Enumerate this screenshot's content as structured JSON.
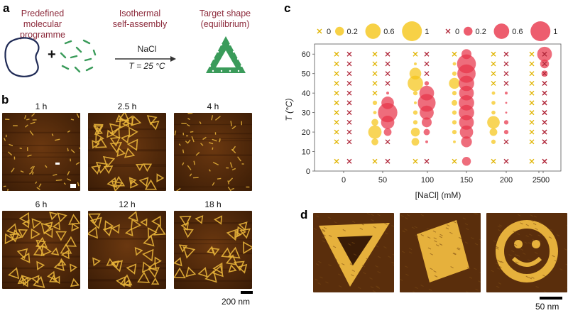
{
  "panels": {
    "a": "a",
    "b": "b",
    "c": "c",
    "d": "d"
  },
  "panel_a": {
    "left_label": "Predefined\nmolecular programme",
    "middle_label": "Isothermal\nself-assembly",
    "right_label": "Target shape\n(equilibrium)",
    "arrow_top": "NaCl",
    "arrow_bottom": "T = 25 °C",
    "plus": "+"
  },
  "panel_b": {
    "times": [
      "1 h",
      "2.5 h",
      "4 h",
      "6 h",
      "12 h",
      "18 h"
    ],
    "scale_bar": "200 nm"
  },
  "panel_d": {
    "scale_bar": "50 nm",
    "shapes": [
      "triangle",
      "rectangle",
      "smiley"
    ]
  },
  "colors": {
    "header_text": "#8c2a3b",
    "yellow": "#f5c518",
    "red": "#e8344a",
    "green": "#3a9b5a",
    "navy": "#1f2a55",
    "afm_dark": "#3a1c06",
    "afm_light": "#e8b43a"
  },
  "chart_data": {
    "type": "scatter",
    "xlabel": "[NaCl] (mM)",
    "ylabel": "T (°C)",
    "x_ticks": [
      0,
      50,
      100,
      150,
      200,
      250,
      500
    ],
    "x_tick_labels": [
      "0",
      "50",
      "100",
      "150",
      "200",
      "250",
      "500"
    ],
    "y_ticks": [
      0,
      10,
      20,
      30,
      40,
      50,
      60
    ],
    "ylim": [
      0,
      63
    ],
    "legend_placement": "top",
    "legend": {
      "yellow": [
        {
          "label": "0",
          "marker": "x"
        },
        {
          "label": "0.2",
          "size": 0.2
        },
        {
          "label": "0.6",
          "size": 0.6
        },
        {
          "label": "1",
          "size": 1
        }
      ],
      "red": [
        {
          "label": "0",
          "marker": "x"
        },
        {
          "label": "0.2",
          "size": 0.2
        },
        {
          "label": "0.6",
          "size": 0.6
        },
        {
          "label": "1",
          "size": 1
        }
      ]
    },
    "temperatures": [
      5,
      15,
      20,
      25,
      30,
      35,
      40,
      45,
      50,
      55,
      60
    ],
    "series": [
      {
        "color": "yellow",
        "columns": [
          {
            "nacl": 0,
            "values": [
              0,
              0,
              0,
              0,
              0,
              0,
              0,
              0,
              0,
              0,
              0
            ]
          },
          {
            "nacl": 50,
            "values": [
              0,
              0.12,
              0.45,
              0.12,
              0.03,
              0.05,
              0,
              0,
              0,
              0,
              0
            ]
          },
          {
            "nacl": 100,
            "values": [
              0,
              0.15,
              0.2,
              0.05,
              0.05,
              0.02,
              0.05,
              0.6,
              0.35,
              0.02,
              0
            ]
          },
          {
            "nacl": 150,
            "values": [
              0,
              0.02,
              0.05,
              0.05,
              0.05,
              0.08,
              0.05,
              0.3,
              0.05,
              0.03,
              0
            ]
          },
          {
            "nacl": 200,
            "values": [
              0,
              0.05,
              0.15,
              0.4,
              0.04,
              0.04,
              0.03,
              0,
              0,
              0,
              0
            ]
          },
          {
            "nacl": 500,
            "values": [
              0,
              0,
              0,
              0,
              0,
              0,
              0,
              0,
              0,
              0,
              0
            ]
          }
        ]
      },
      {
        "color": "red",
        "columns": [
          {
            "nacl": 0,
            "values": [
              0,
              0,
              0,
              0,
              0,
              0,
              0,
              0,
              0,
              0,
              0
            ]
          },
          {
            "nacl": 50,
            "values": [
              0,
              0,
              0.15,
              0.45,
              0.95,
              0.4,
              0.02,
              0,
              0,
              0,
              0
            ]
          },
          {
            "nacl": 100,
            "values": [
              0,
              0.02,
              0.1,
              0.25,
              0.5,
              0.8,
              0.55,
              0.05,
              0,
              0,
              0
            ]
          },
          {
            "nacl": 150,
            "values": [
              0.2,
              0.3,
              0.45,
              0.55,
              0.6,
              0.6,
              0.55,
              0.6,
              0.85,
              0.9,
              0.25
            ]
          },
          {
            "nacl": 200,
            "values": [
              0,
              0,
              0.05,
              0.05,
              0.01,
              0.01,
              0.02,
              0,
              0,
              0,
              0
            ]
          },
          {
            "nacl": 250,
            "values": [
              0,
              0,
              0,
              0,
              0,
              0,
              0,
              0,
              0.1,
              0.2,
              0.55
            ]
          },
          {
            "nacl": 500,
            "values": [
              0,
              0,
              0,
              0,
              0,
              0,
              0,
              0,
              0,
              0,
              0
            ]
          }
        ]
      }
    ]
  }
}
